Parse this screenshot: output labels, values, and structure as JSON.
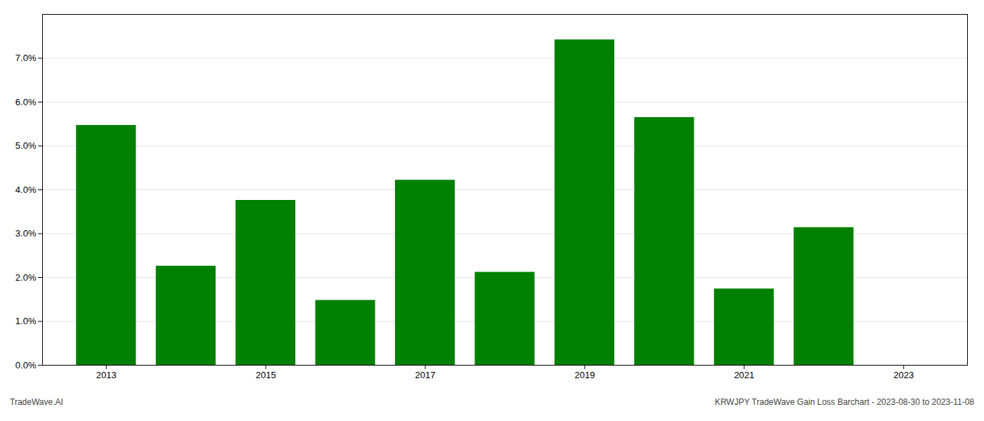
{
  "chart_data": {
    "type": "bar",
    "x": [
      2013,
      2014,
      2015,
      2016,
      2017,
      2018,
      2019,
      2020,
      2021,
      2022,
      2023
    ],
    "values": [
      0.0547,
      0.0226,
      0.0376,
      0.0148,
      0.0422,
      0.0212,
      0.0742,
      0.0565,
      0.0174,
      0.0314,
      0.0
    ],
    "color": "#008000",
    "xlim": [
      2012.2,
      2023.8
    ],
    "xticks": [
      2013,
      2015,
      2017,
      2019,
      2021,
      2023
    ],
    "ylim": [
      0.0,
      0.08
    ],
    "yticks": [
      {
        "value": 0.0,
        "label": "0.0%"
      },
      {
        "value": 0.01,
        "label": "1.0%"
      },
      {
        "value": 0.02,
        "label": "2.0%"
      },
      {
        "value": 0.03,
        "label": "3.0%"
      },
      {
        "value": 0.04,
        "label": "4.0%"
      },
      {
        "value": 0.05,
        "label": "5.0%"
      },
      {
        "value": 0.06,
        "label": "6.0%"
      },
      {
        "value": 0.07,
        "label": "7.0%"
      }
    ],
    "grid": true,
    "annotations": [
      "TradeWave.AI",
      "KRWJPY TradeWave Gain Loss Barchart - 2023-08-30 to 2023-11-08"
    ]
  }
}
